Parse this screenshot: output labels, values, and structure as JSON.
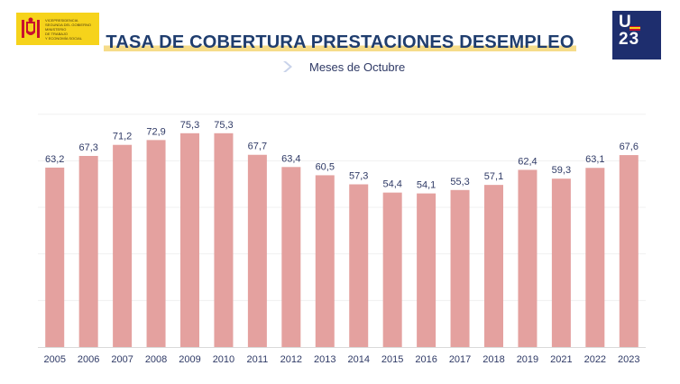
{
  "header": {
    "gov_logo_lines": [
      "VICEPRESIDENCIA",
      "SEGUNDA DEL GOBIERNO",
      "",
      "MINISTERIO",
      "DE TRABAJO",
      "Y ECONOMÍA SOCIAL"
    ],
    "eu_logo_top": "U",
    "eu_logo_bottom": "23"
  },
  "chart_data": {
    "type": "bar",
    "title": "TASA DE COBERTURA PRESTACIONES DESEMPLEO",
    "subtitle": "Meses de Octubre",
    "categories": [
      "2005",
      "2006",
      "2007",
      "2008",
      "2009",
      "2010",
      "2011",
      "2012",
      "2013",
      "2014",
      "2015",
      "2016",
      "2017",
      "2018",
      "2019",
      "2021",
      "2022",
      "2023"
    ],
    "values": [
      63.2,
      67.3,
      71.2,
      72.9,
      75.3,
      75.3,
      67.7,
      63.4,
      60.5,
      57.3,
      54.4,
      54.1,
      55.3,
      57.1,
      62.4,
      59.3,
      63.1,
      67.6
    ],
    "value_labels": [
      "63,2",
      "67,3",
      "71,2",
      "72,9",
      "75,3",
      "75,3",
      "67,7",
      "63,4",
      "60,5",
      "57,3",
      "54,4",
      "54,1",
      "55,3",
      "57,1",
      "62,4",
      "59,3",
      "63,1",
      "67,6"
    ],
    "ylim": [
      0,
      100
    ],
    "grid": false,
    "bar_color": "#e4a19f",
    "label_color": "#2f3a66",
    "title_color": "#1f3d6e"
  }
}
